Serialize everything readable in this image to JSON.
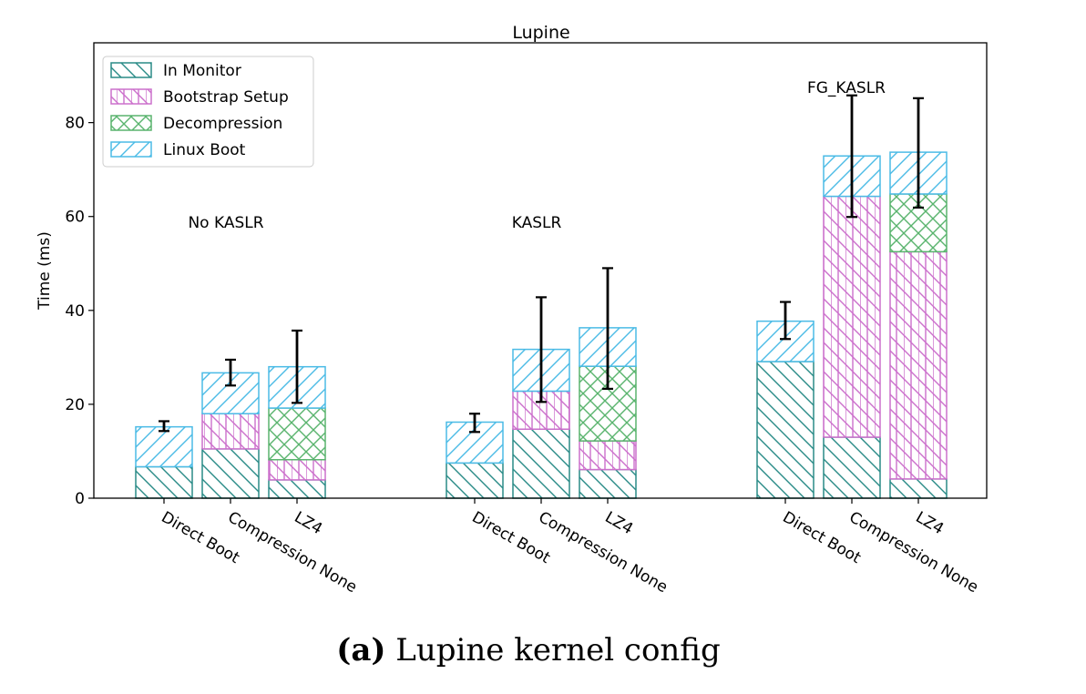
{
  "chart_data": {
    "type": "bar",
    "stacked": true,
    "title": "Lupine",
    "ylabel": "Time (ms)",
    "xlabel": "",
    "ylim": [
      0,
      97
    ],
    "yticks": [
      0,
      20,
      40,
      60,
      80
    ],
    "legend_position": "top-left",
    "groups": [
      "No KASLR",
      "KASLR",
      "FG_KASLR"
    ],
    "categories": [
      "Direct Boot",
      "Compression None",
      "LZ4"
    ],
    "series": [
      {
        "name": "In Monitor",
        "color": "#2a8b87",
        "hatch": "backslash",
        "values": [
          [
            6.7,
            10.5,
            3.9
          ],
          [
            7.5,
            14.7,
            6.1
          ],
          [
            29.1,
            13.0,
            4.1
          ]
        ]
      },
      {
        "name": "Bootstrap Setup",
        "color": "#cc70cc",
        "hatch": "vertical-backslash",
        "values": [
          [
            0,
            7.5,
            4.3
          ],
          [
            0,
            8.1,
            6.1
          ],
          [
            0,
            51.3,
            48.4
          ]
        ]
      },
      {
        "name": "Decompression",
        "color": "#5ab46e",
        "hatch": "crosshatch",
        "values": [
          [
            0,
            0,
            11.0
          ],
          [
            0,
            0,
            15.9
          ],
          [
            0,
            0,
            12.3
          ]
        ]
      },
      {
        "name": "Linux Boot",
        "color": "#4bbbe6",
        "hatch": "slash",
        "values": [
          [
            8.5,
            8.7,
            8.8
          ],
          [
            8.7,
            8.9,
            8.2
          ],
          [
            8.6,
            8.6,
            8.9
          ]
        ]
      }
    ],
    "error_bars": [
      [
        [
          14.3,
          16.4
        ],
        [
          24.0,
          29.5
        ],
        [
          20.3,
          35.7
        ]
      ],
      [
        [
          14.1,
          18.0
        ],
        [
          20.5,
          42.8
        ],
        [
          23.3,
          49.0
        ]
      ],
      [
        [
          33.9,
          41.8
        ],
        [
          59.9,
          85.8
        ],
        [
          61.9,
          85.2
        ]
      ]
    ]
  },
  "caption": {
    "label": "(a)",
    "text": "Lupine kernel config"
  }
}
